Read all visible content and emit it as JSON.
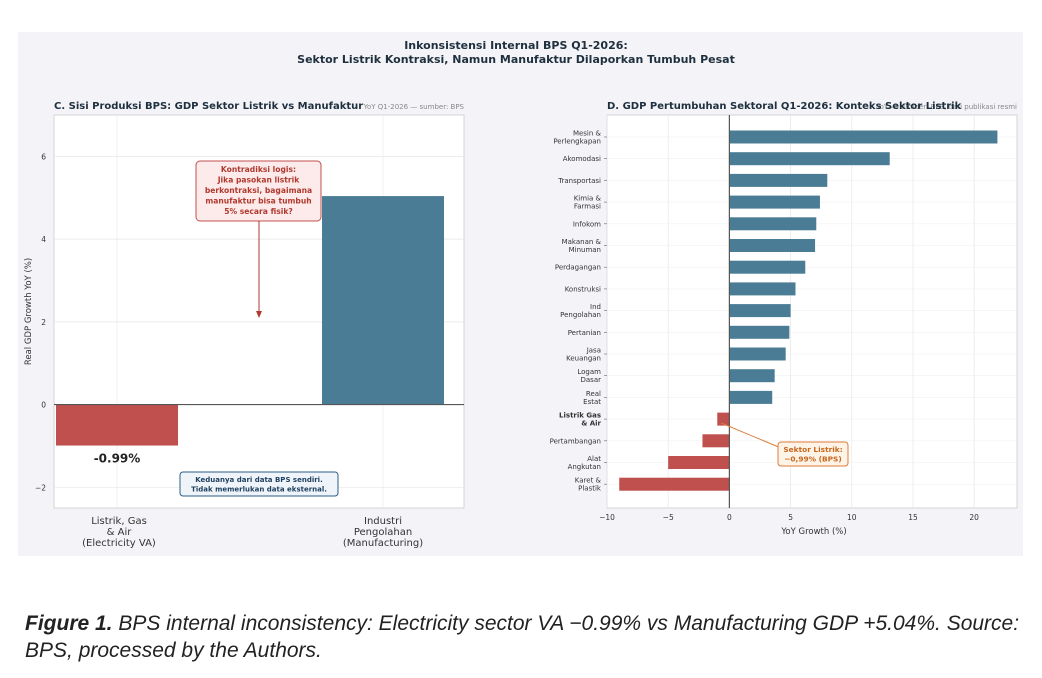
{
  "figure": {
    "suptitle_line1": "Inkonsistensi Internal BPS Q1-2026:",
    "suptitle_line2": "Sektor Listrik Kontraksi, Namun Manufaktur Dilaporkan Tumbuh Pesat",
    "caption_label": "Figure 1.",
    "caption_text": " BPS internal inconsistency: Electricity sector VA −0.99% vs Manufacturing GDP +5.04%. Source: BPS, processed by the Authors."
  },
  "colors": {
    "red": "#c0504d",
    "blue": "#4a7c96",
    "orange": "#e07b39"
  },
  "chart_data": [
    {
      "type": "bar",
      "title": "C. Sisi Produksi BPS: GDP Sektor Listrik vs Manufaktur",
      "subtitle": "YoY Q1-2026 — sumber: BPS",
      "ylabel": "Real GDP Growth YoY (%)",
      "ylim": [
        -2.5,
        7
      ],
      "yticks": [
        -2,
        0,
        2,
        4,
        6
      ],
      "grid": true,
      "categories": [
        [
          "Listrik, Gas",
          "& Air",
          "(Electricity VA)"
        ],
        [
          "Industri",
          "Pengolahan",
          "(Manufacturing)"
        ]
      ],
      "values": [
        -0.99,
        5.04
      ],
      "value_label": "-0.99%",
      "annotation_box": [
        "Kontradiksi logis:",
        "Jika pasokan listrik",
        "berkontraksi, bagaimana",
        "manufaktur bisa tumbuh",
        "5% secara fisik?"
      ],
      "note_box": [
        "Keduanya dari data BPS sendiri.",
        "Tidak memerlukan data eksternal."
      ]
    },
    {
      "type": "bar",
      "orientation": "horizontal",
      "title": "D. GDP Pertumbuhan Sektoral Q1-2026: Konteks Sektor Listrik",
      "subtitle": "YoY — sumber: BPS, dari publikasi resmi",
      "xlabel": "YoY Growth (%)",
      "xlim": [
        -10,
        23.5
      ],
      "xticks": [
        -10,
        -5,
        0,
        5,
        10,
        15,
        20
      ],
      "grid": true,
      "categories": [
        [
          "Mesin &",
          "Perlengkapan"
        ],
        [
          "Akomodasi"
        ],
        [
          "Transportasi"
        ],
        [
          "Kimia &",
          "Farmasi"
        ],
        [
          "Infokom"
        ],
        [
          "Makanan &",
          "Minuman"
        ],
        [
          "Perdagangan"
        ],
        [
          "Konstruksi"
        ],
        [
          "Ind",
          "Pengolahan"
        ],
        [
          "Pertanian"
        ],
        [
          "Jasa",
          "Keuangan"
        ],
        [
          "Logam",
          "Dasar"
        ],
        [
          "Real",
          "Estat"
        ],
        [
          "Listrik Gas",
          "& Air"
        ],
        [
          "Pertambangan"
        ],
        [
          "Alat",
          "Angkutan"
        ],
        [
          "Karet &",
          "Plastik"
        ]
      ],
      "values": [
        21.9,
        13.1,
        8.0,
        7.4,
        7.1,
        7.0,
        6.2,
        5.4,
        5.0,
        4.9,
        4.6,
        3.7,
        3.5,
        -0.99,
        -2.2,
        -5.0,
        -9.0
      ],
      "highlight_index": 13,
      "annotation_box": [
        "Sektor Listrik:",
        "−0,99% (BPS)"
      ]
    }
  ]
}
